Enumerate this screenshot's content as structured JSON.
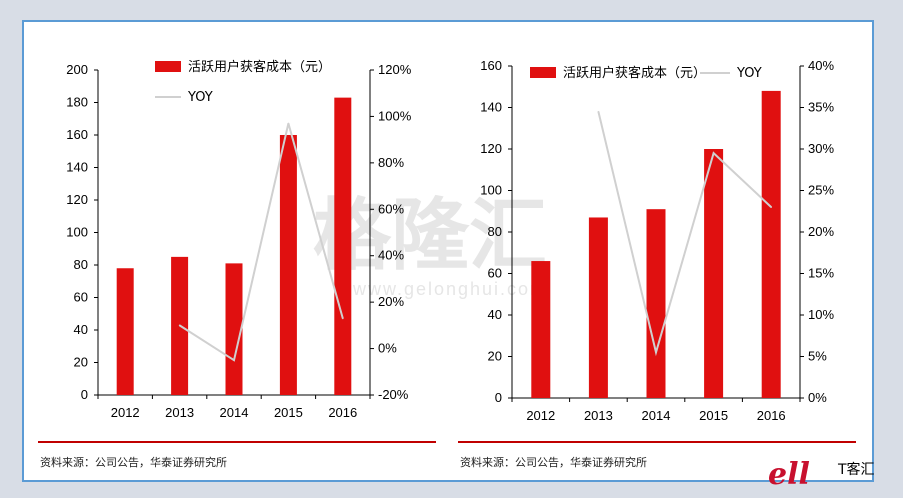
{
  "charts": [
    {
      "legend_bar": "活跃用户获客成本（元）",
      "legend_line": "YOY",
      "source": "资料来源：公司公告，华泰证券研究所",
      "left_ticks": [
        "0",
        "20",
        "40",
        "60",
        "80",
        "100",
        "120",
        "140",
        "160",
        "180",
        "200"
      ],
      "right_ticks": [
        "-20%",
        "0%",
        "20%",
        "40%",
        "60%",
        "80%",
        "100%",
        "120%"
      ]
    },
    {
      "legend_bar": "活跃用户获客成本（元）",
      "legend_line": "YOY",
      "source": "资料来源：公司公告，华泰证券研究所",
      "left_ticks": [
        "0",
        "20",
        "40",
        "60",
        "80",
        "100",
        "120",
        "140",
        "160"
      ],
      "right_ticks": [
        "0%",
        "5%",
        "10%",
        "15%",
        "20%",
        "25%",
        "30%",
        "35%",
        "40%"
      ]
    }
  ],
  "watermark": {
    "main": "格隆汇",
    "url": "www.gelonghui.com"
  },
  "brand": {
    "logo": "ell",
    "text": "T客汇"
  },
  "colors": {
    "bar": "#e01010",
    "line": "#d0d0d0",
    "rule": "#c00000",
    "border": "#5b9bd5"
  },
  "chart_data": [
    {
      "type": "bar",
      "categories": [
        "2012",
        "2013",
        "2014",
        "2015",
        "2016"
      ],
      "series": [
        {
          "name": "活跃用户获客成本（元）",
          "type": "bar",
          "axis": "left",
          "values": [
            78,
            85,
            81,
            160,
            183
          ]
        },
        {
          "name": "YOY",
          "type": "line",
          "axis": "right",
          "values": [
            null,
            10,
            -5,
            97,
            13
          ]
        }
      ],
      "ylim_left": [
        0,
        200
      ],
      "ylim_right": [
        -20,
        120
      ],
      "right_unit": "%",
      "grid": false,
      "legend_position": "top"
    },
    {
      "type": "bar",
      "categories": [
        "2012",
        "2013",
        "2014",
        "2015",
        "2016"
      ],
      "series": [
        {
          "name": "活跃用户获客成本（元）",
          "type": "bar",
          "axis": "left",
          "values": [
            66,
            87,
            91,
            120,
            148
          ]
        },
        {
          "name": "YOY",
          "type": "line",
          "axis": "right",
          "values": [
            null,
            34.5,
            5.5,
            29.5,
            23
          ]
        }
      ],
      "ylim_left": [
        0,
        160
      ],
      "ylim_right": [
        0,
        40
      ],
      "right_unit": "%",
      "grid": false,
      "legend_position": "top"
    }
  ]
}
